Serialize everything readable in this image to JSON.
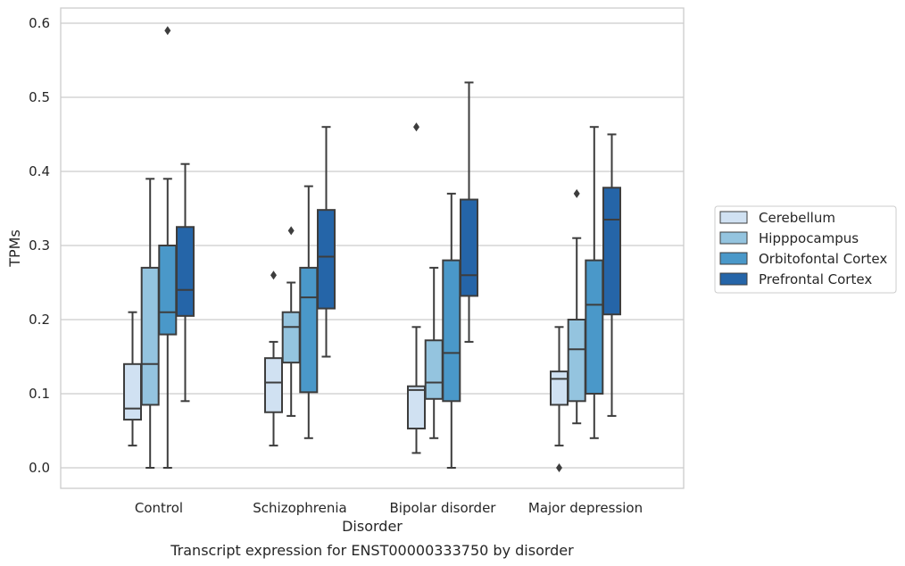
{
  "chart_data": {
    "type": "box",
    "title": "",
    "caption": "Transcript expression for ENST00000333750 by disorder",
    "xlabel": "Disorder",
    "ylabel": "TPMs",
    "ylim": [
      -0.028,
      0.62
    ],
    "yticks": [
      "0.0",
      "0.1",
      "0.2",
      "0.3",
      "0.4",
      "0.5",
      "0.6"
    ],
    "grid": true,
    "legend_position": "right",
    "categories": [
      "Control",
      "Schizophrenia",
      "Bipolar disorder",
      "Major depression"
    ],
    "series": [
      {
        "name": "Cerebellum",
        "color": "#d0e1f2",
        "boxes": [
          {
            "whislo": 0.03,
            "q1": 0.065,
            "med": 0.08,
            "q3": 0.14,
            "whishi": 0.21,
            "fliers": []
          },
          {
            "whislo": 0.03,
            "q1": 0.075,
            "med": 0.115,
            "q3": 0.148,
            "whishi": 0.17,
            "fliers": [
              0.26
            ]
          },
          {
            "whislo": 0.02,
            "q1": 0.053,
            "med": 0.105,
            "q3": 0.11,
            "whishi": 0.19,
            "fliers": [
              0.46
            ]
          },
          {
            "whislo": 0.03,
            "q1": 0.085,
            "med": 0.12,
            "q3": 0.13,
            "whishi": 0.19,
            "fliers": [
              0.0
            ]
          }
        ]
      },
      {
        "name": "Hipppocampus",
        "color": "#94c4df",
        "boxes": [
          {
            "whislo": 0.0,
            "q1": 0.085,
            "med": 0.14,
            "q3": 0.27,
            "whishi": 0.39,
            "fliers": []
          },
          {
            "whislo": 0.07,
            "q1": 0.142,
            "med": 0.19,
            "q3": 0.21,
            "whishi": 0.25,
            "fliers": [
              0.32
            ]
          },
          {
            "whislo": 0.04,
            "q1": 0.093,
            "med": 0.115,
            "q3": 0.172,
            "whishi": 0.27,
            "fliers": []
          },
          {
            "whislo": 0.06,
            "q1": 0.09,
            "med": 0.16,
            "q3": 0.2,
            "whishi": 0.31,
            "fliers": [
              0.37
            ]
          }
        ]
      },
      {
        "name": "Orbitofontal Cortex",
        "color": "#4a98c9",
        "boxes": [
          {
            "whislo": 0.0,
            "q1": 0.18,
            "med": 0.21,
            "q3": 0.3,
            "whishi": 0.39,
            "fliers": [
              0.59
            ]
          },
          {
            "whislo": 0.04,
            "q1": 0.102,
            "med": 0.23,
            "q3": 0.27,
            "whishi": 0.38,
            "fliers": []
          },
          {
            "whislo": 0.0,
            "q1": 0.09,
            "med": 0.155,
            "q3": 0.28,
            "whishi": 0.37,
            "fliers": []
          },
          {
            "whislo": 0.04,
            "q1": 0.1,
            "med": 0.22,
            "q3": 0.28,
            "whishi": 0.46,
            "fliers": []
          }
        ]
      },
      {
        "name": "Prefrontal Cortex",
        "color": "#2565a8",
        "boxes": [
          {
            "whislo": 0.09,
            "q1": 0.205,
            "med": 0.24,
            "q3": 0.325,
            "whishi": 0.41,
            "fliers": []
          },
          {
            "whislo": 0.15,
            "q1": 0.215,
            "med": 0.285,
            "q3": 0.348,
            "whishi": 0.46,
            "fliers": []
          },
          {
            "whislo": 0.17,
            "q1": 0.232,
            "med": 0.26,
            "q3": 0.362,
            "whishi": 0.52,
            "fliers": []
          },
          {
            "whislo": 0.07,
            "q1": 0.207,
            "med": 0.335,
            "q3": 0.378,
            "whishi": 0.45,
            "fliers": []
          }
        ]
      }
    ]
  }
}
